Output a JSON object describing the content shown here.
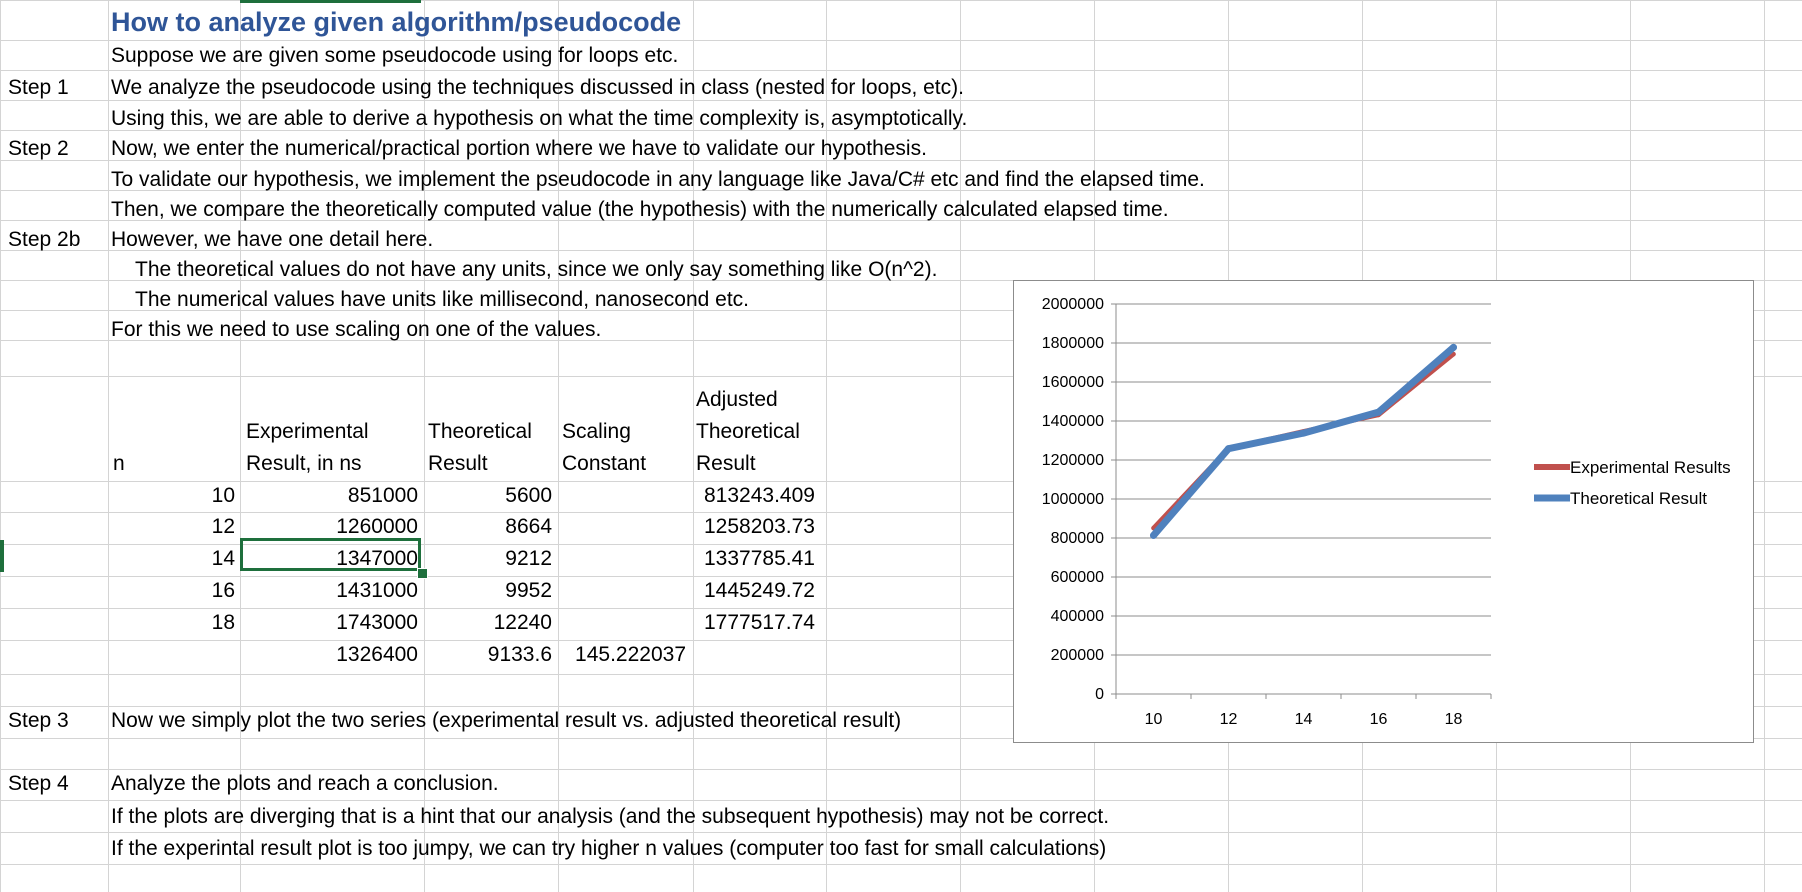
{
  "sheet": {
    "title": "How to analyze given algorithm/pseudocode",
    "lines": {
      "r2": "Suppose we are given some pseudocode using for loops etc.",
      "r3": "We analyze the pseudocode using the techniques discussed in class (nested for loops, etc).",
      "r4": "Using this, we are able to derive a hypothesis on what the time complexity is, asymptotically.",
      "r5": "Now, we enter the numerical/practical portion where we have to validate our hypothesis.",
      "r6": "To validate our hypothesis, we implement the pseudocode in any language like Java/C# etc and find the elapsed time.",
      "r7": "Then, we compare the theoretically computed value (the hypothesis) with the numerically calculated elapsed time.",
      "r8": "However, we have one detail here.",
      "r9": "The theoretical values do not have any units, since we only say something like O(n^2).",
      "r10": "The numerical values have units like millisecond, nanosecond etc.",
      "r11": "For this we need to use scaling on one of the values.",
      "r22": "Now we simply plot the two series (experimental result vs. adjusted theoretical result)",
      "r24": "Analyze the plots and reach a conclusion.",
      "r25": "If the plots are diverging that is a hint that our analysis (and the subsequent hypothesis) may not be correct.",
      "r26": "If the experintal result plot is too jumpy, we can try higher n values (computer too fast for small calculations)"
    },
    "steps": {
      "s1": "Step 1",
      "s2": "Step 2",
      "s2b": "Step 2b",
      "s3": "Step 3",
      "s4": "Step 4"
    },
    "headers": {
      "n": "n",
      "exp1": "Experimental",
      "exp2": "Result, in ns",
      "theo1": "Theoretical",
      "theo2": "Result",
      "scale1": "Scaling",
      "scale2": "Constant",
      "adj1": "Adjusted",
      "adj2": "Theoretical",
      "adj3": "Result"
    },
    "rows": [
      {
        "n": "10",
        "exp": "851000",
        "theo": "5600",
        "adj": "813243.409"
      },
      {
        "n": "12",
        "exp": "1260000",
        "theo": "8664",
        "adj": "1258203.73"
      },
      {
        "n": "14",
        "exp": "1347000",
        "theo": "9212",
        "adj": "1337785.41"
      },
      {
        "n": "16",
        "exp": "1431000",
        "theo": "9952",
        "adj": "1445249.72"
      },
      {
        "n": "18",
        "exp": "1743000",
        "theo": "12240",
        "adj": "1777517.74"
      }
    ],
    "averages": {
      "exp": "1326400",
      "theo": "9133.6",
      "scale": "145.222037"
    }
  },
  "colors": {
    "title": "#2f5597",
    "gridline": "#d4d4d4",
    "selection": "#1e6f3c",
    "experimental": "#c0504d",
    "theoretical": "#4f81bd"
  },
  "chart_data": {
    "type": "line",
    "x": [
      10,
      12,
      14,
      16,
      18
    ],
    "series": [
      {
        "name": "Experimental Results",
        "values": [
          851000,
          1260000,
          1347000,
          1431000,
          1743000
        ]
      },
      {
        "name": "Theoretical Result",
        "values": [
          813243.409,
          1258203.73,
          1337785.41,
          1445249.72,
          1777517.74
        ]
      }
    ],
    "ylim": [
      0,
      2000000
    ],
    "yticks": [
      "0",
      "200000",
      "400000",
      "600000",
      "800000",
      "1000000",
      "1200000",
      "1400000",
      "1600000",
      "1800000",
      "2000000"
    ],
    "xticks": [
      "10",
      "12",
      "14",
      "16",
      "18"
    ],
    "grid": true,
    "legend": "right"
  }
}
